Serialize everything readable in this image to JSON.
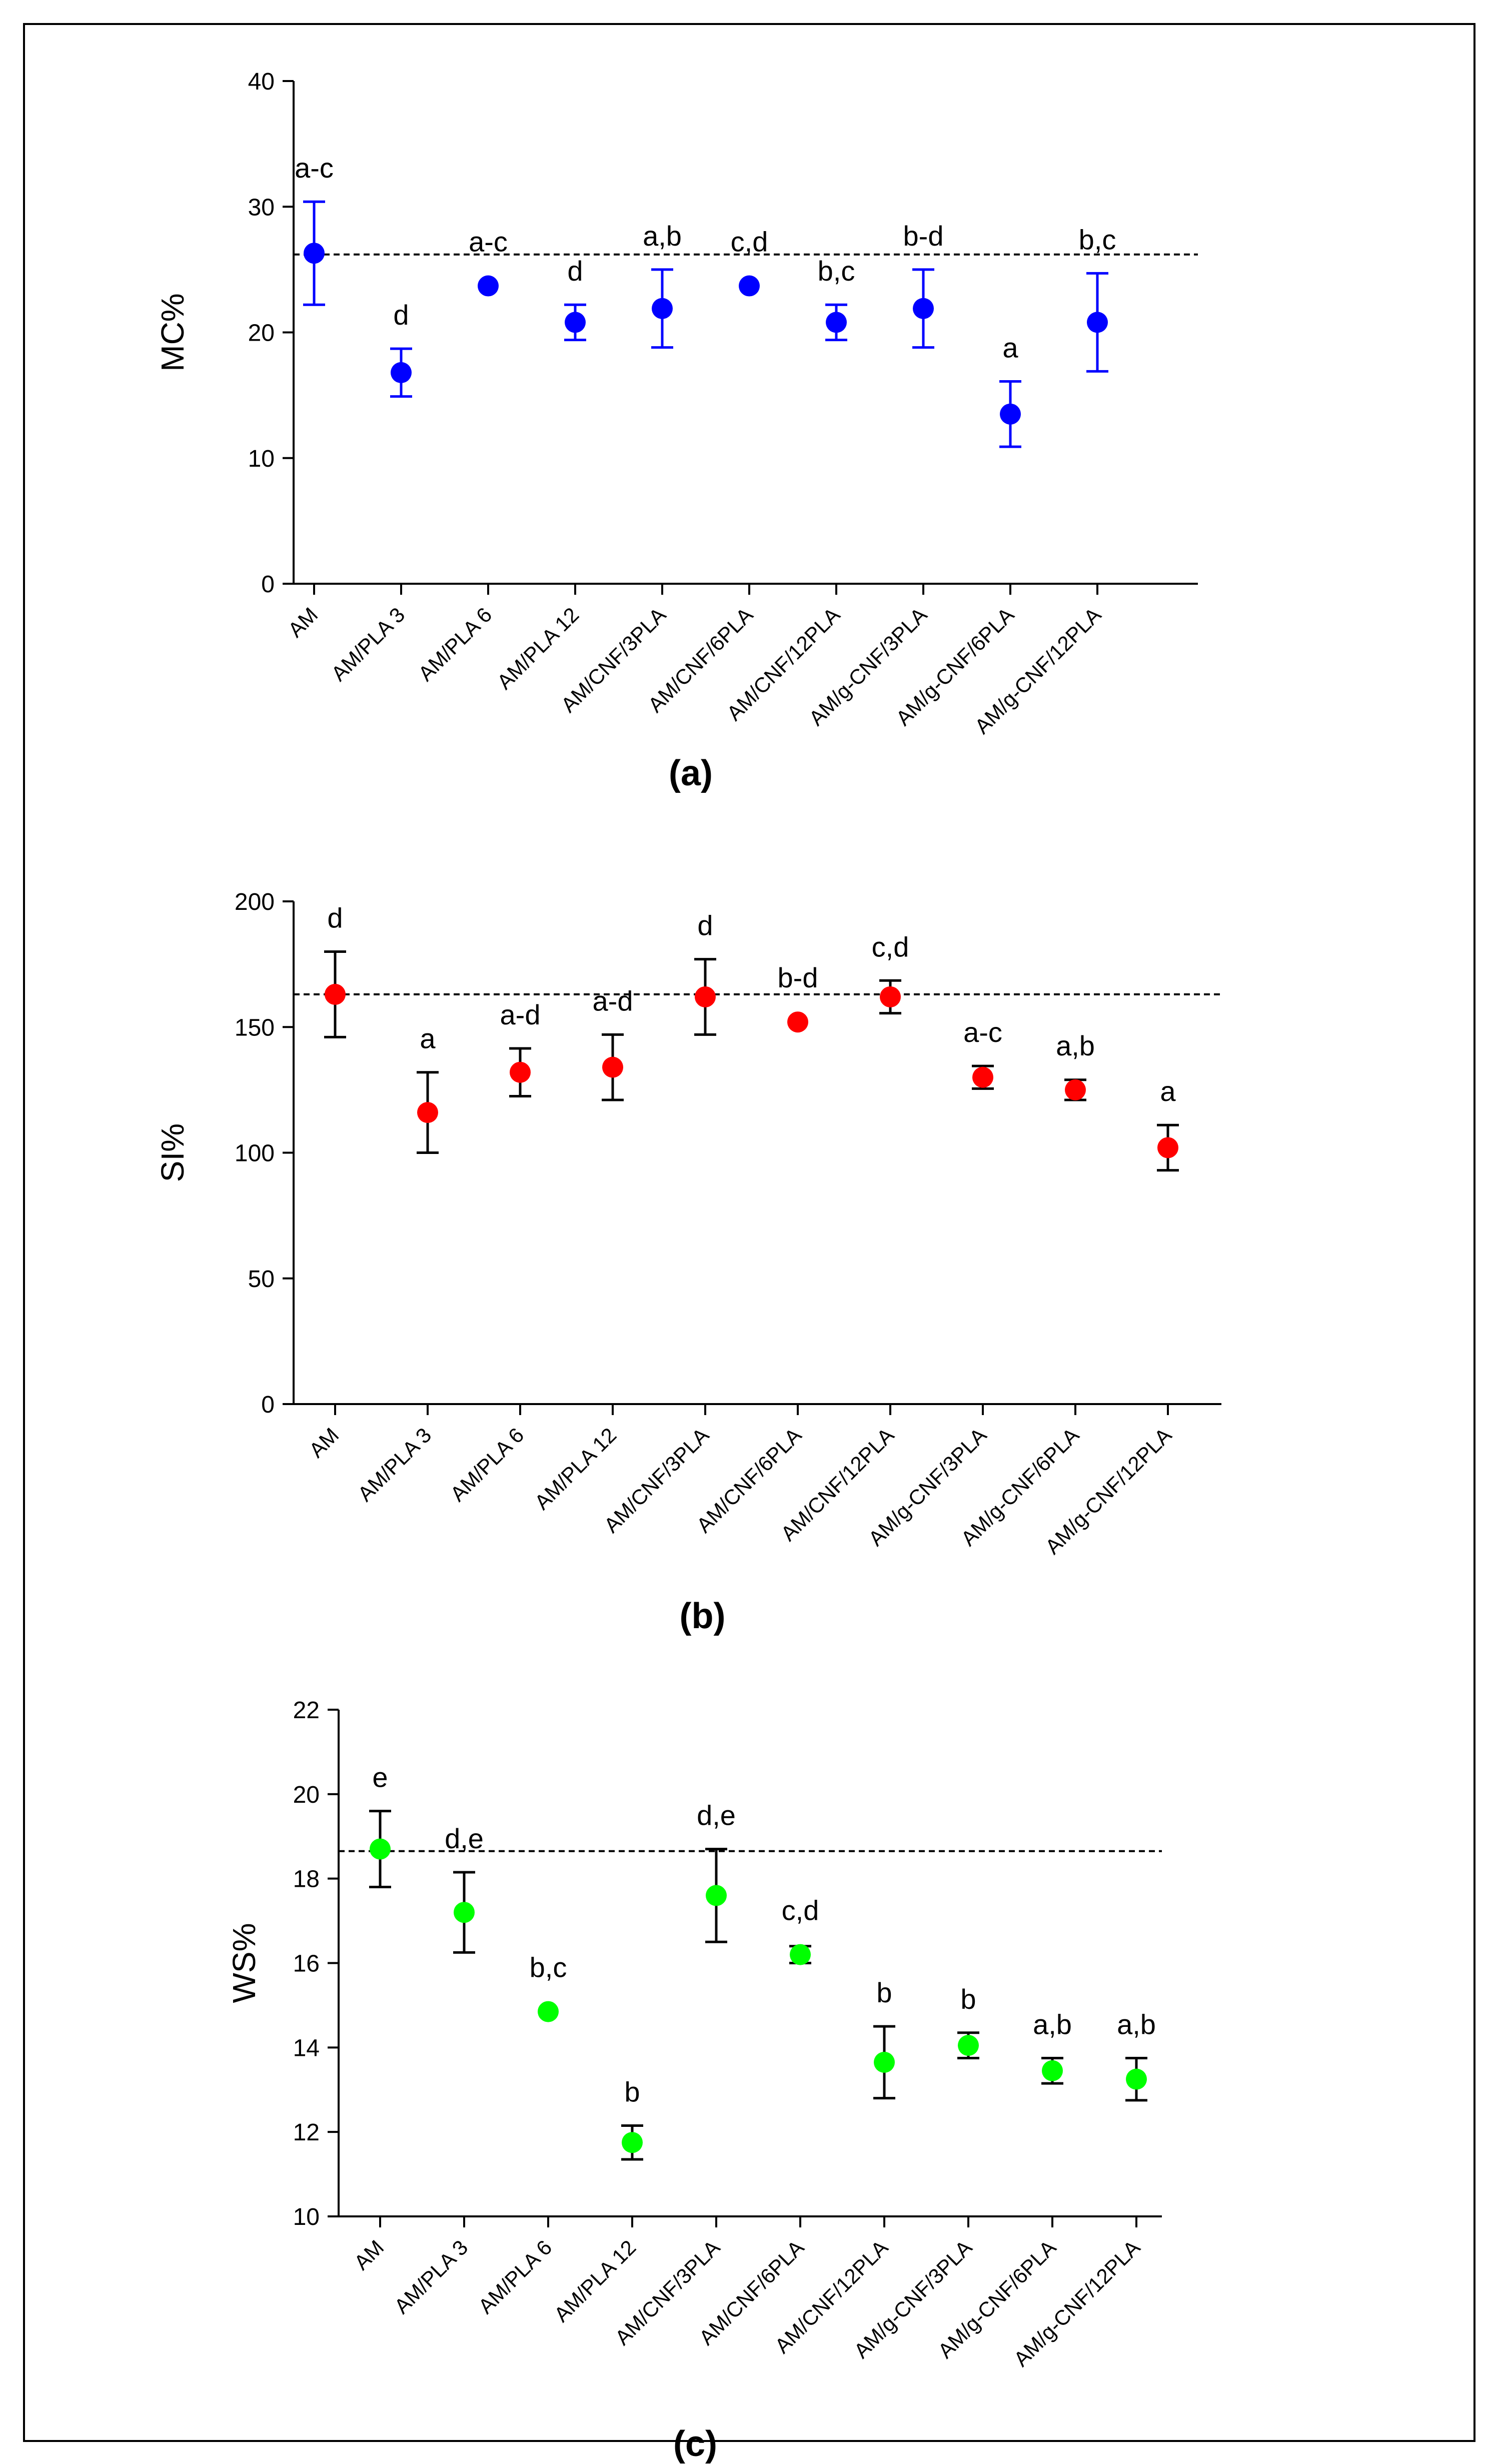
{
  "chart_data": [
    {
      "type": "scatter",
      "panel_label": "(a)",
      "ylabel": "MC%",
      "xlabel": "",
      "ylim": [
        0,
        40
      ],
      "yticks": [
        0,
        10,
        20,
        30,
        40
      ],
      "color": "#0000ff",
      "error_bar_color": "#0000ff",
      "reference_line": 26.2,
      "categories": [
        "AM",
        "AM/PLA 3",
        "AM/PLA 6",
        "AM/PLA 12",
        "AM/CNF/3PLA",
        "AM/CNF/6PLA",
        "AM/CNF/12PLA",
        "AM/g-CNF/3PLA",
        "AM/g-CNF/6PLA",
        "AM/g-CNF/12PLA"
      ],
      "values": [
        26.3,
        16.8,
        23.7,
        20.8,
        21.9,
        23.7,
        20.8,
        21.9,
        13.5,
        20.8
      ],
      "errors": [
        4.1,
        1.9,
        0.0,
        1.4,
        3.1,
        0.0,
        1.4,
        3.1,
        2.6,
        3.9
      ],
      "significance": [
        "a-c",
        "d",
        "a-c",
        "d",
        "a,b",
        "c,d",
        "b,c",
        "b-d",
        "a",
        "b,c"
      ]
    },
    {
      "type": "scatter",
      "panel_label": "(b)",
      "ylabel": "SI%",
      "xlabel": "",
      "ylim": [
        0,
        200
      ],
      "yticks": [
        0,
        50,
        100,
        150,
        200
      ],
      "color": "#ff0000",
      "error_bar_color": "#000000",
      "reference_line": 163,
      "categories": [
        "AM",
        "AM/PLA 3",
        "AM/PLA 6",
        "AM/PLA 12",
        "AM/CNF/3PLA",
        "AM/CNF/6PLA",
        "AM/CNF/12PLA",
        "AM/g-CNF/3PLA",
        "AM/g-CNF/6PLA",
        "AM/g-CNF/12PLA"
      ],
      "values": [
        163,
        116,
        132,
        134,
        162,
        152,
        162,
        130,
        125,
        102
      ],
      "errors": [
        17,
        16,
        9.5,
        13,
        15,
        0,
        6.5,
        4.5,
        4,
        9
      ],
      "significance": [
        "d",
        "a",
        "a-d",
        "a-d",
        "d",
        "b-d",
        "c,d",
        "a-c",
        "a,b",
        "a"
      ]
    },
    {
      "type": "scatter",
      "panel_label": "(c)",
      "ylabel": "WS%",
      "xlabel": "",
      "ylim": [
        10,
        22
      ],
      "yticks": [
        10,
        12,
        14,
        16,
        18,
        20,
        22
      ],
      "color": "#00ff00",
      "error_bar_color": "#000000",
      "reference_line": 18.65,
      "categories": [
        "AM",
        "AM/PLA 3",
        "AM/PLA 6",
        "AM/PLA 12",
        "AM/CNF/3PLA",
        "AM/CNF/6PLA",
        "AM/CNF/12PLA",
        "AM/g-CNF/3PLA",
        "AM/g-CNF/6PLA",
        "AM/g-CNF/12PLA"
      ],
      "values": [
        18.7,
        17.2,
        14.85,
        11.75,
        17.6,
        16.2,
        13.65,
        14.05,
        13.45,
        13.25
      ],
      "errors": [
        0.9,
        0.95,
        0,
        0.4,
        1.1,
        0.2,
        0.85,
        0.3,
        0.3,
        0.5
      ],
      "significance": [
        "e",
        "d,e",
        "b,c",
        "b",
        "d,e",
        "c,d",
        "b",
        "b",
        "a,b",
        "a,b"
      ]
    }
  ]
}
